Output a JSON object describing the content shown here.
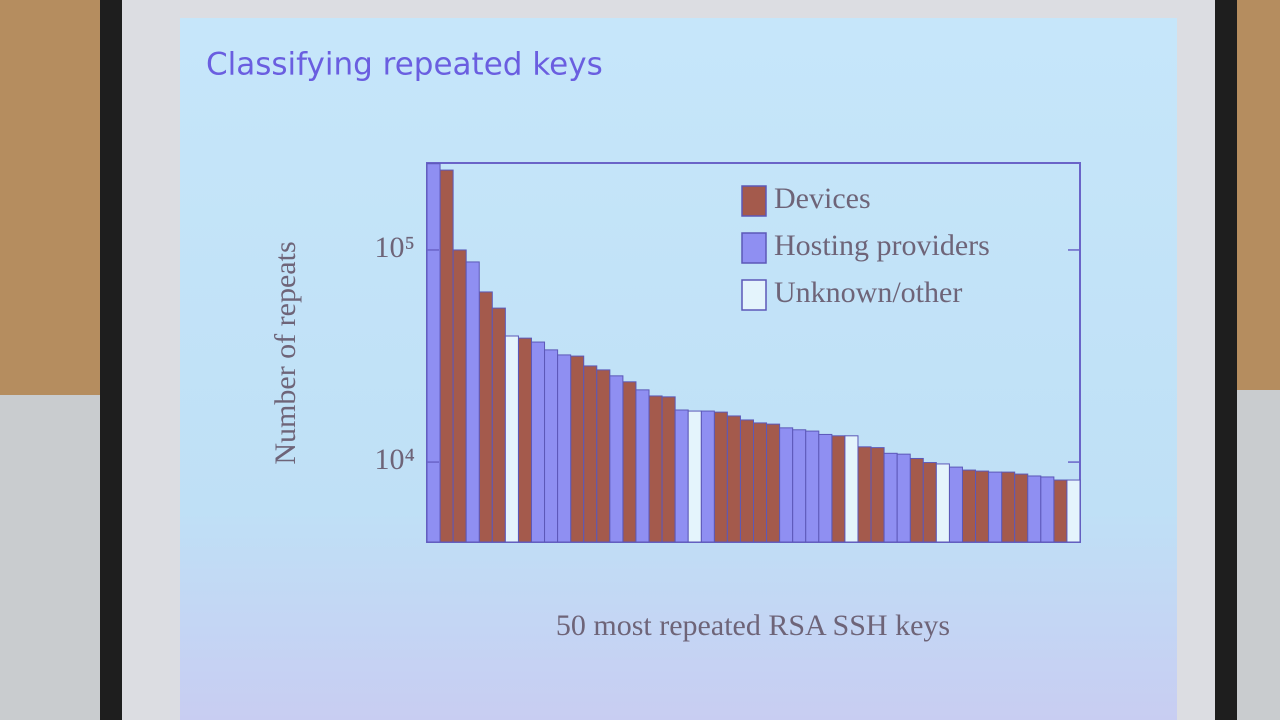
{
  "chart_data": {
    "type": "bar",
    "title": "Classifying repeated keys",
    "y_label": "Number of repeats",
    "x_label": "50 most repeated RSA SSH keys",
    "log_y": true,
    "ylim": [
      4200,
      257000
    ],
    "yticks": [
      {
        "value": 10000,
        "label": "10⁴"
      },
      {
        "value": 100000,
        "label": "10⁵"
      }
    ],
    "legend": "upper right",
    "series": [
      {
        "name": "Devices",
        "color": "#a45a4c",
        "values": [
          null,
          238000,
          100000,
          null,
          63400,
          53200,
          null,
          38400,
          null,
          null,
          null,
          31600,
          28400,
          27200,
          null,
          23900,
          null,
          20500,
          20300,
          null,
          null,
          null,
          17200,
          16500,
          15800,
          15300,
          15100,
          null,
          null,
          null,
          null,
          13300,
          null,
          11800,
          11700,
          null,
          null,
          10400,
          9950,
          null,
          null,
          9170,
          9070,
          null,
          8970,
          8780,
          null,
          null,
          8230,
          null
        ]
      },
      {
        "name": "Hosting providers",
        "color": "#8f8ff2",
        "values": [
          255000,
          null,
          null,
          87800,
          null,
          null,
          null,
          null,
          36800,
          33800,
          32000,
          null,
          null,
          null,
          25500,
          null,
          21900,
          null,
          null,
          17600,
          null,
          17400,
          null,
          null,
          null,
          null,
          null,
          14500,
          14200,
          14000,
          13500,
          null,
          null,
          null,
          null,
          11000,
          10900,
          null,
          null,
          null,
          9470,
          null,
          null,
          8970,
          null,
          null,
          8600,
          8510,
          null,
          null
        ]
      },
      {
        "name": "Unknown/other",
        "color": "#e4f4fc",
        "values": [
          null,
          null,
          null,
          null,
          null,
          null,
          39300,
          null,
          null,
          null,
          null,
          null,
          null,
          null,
          null,
          null,
          null,
          null,
          null,
          null,
          17400,
          null,
          null,
          null,
          null,
          null,
          null,
          null,
          null,
          null,
          null,
          null,
          13300,
          null,
          null,
          null,
          null,
          null,
          null,
          9800,
          null,
          null,
          null,
          null,
          null,
          null,
          null,
          null,
          null,
          8230
        ]
      }
    ]
  }
}
